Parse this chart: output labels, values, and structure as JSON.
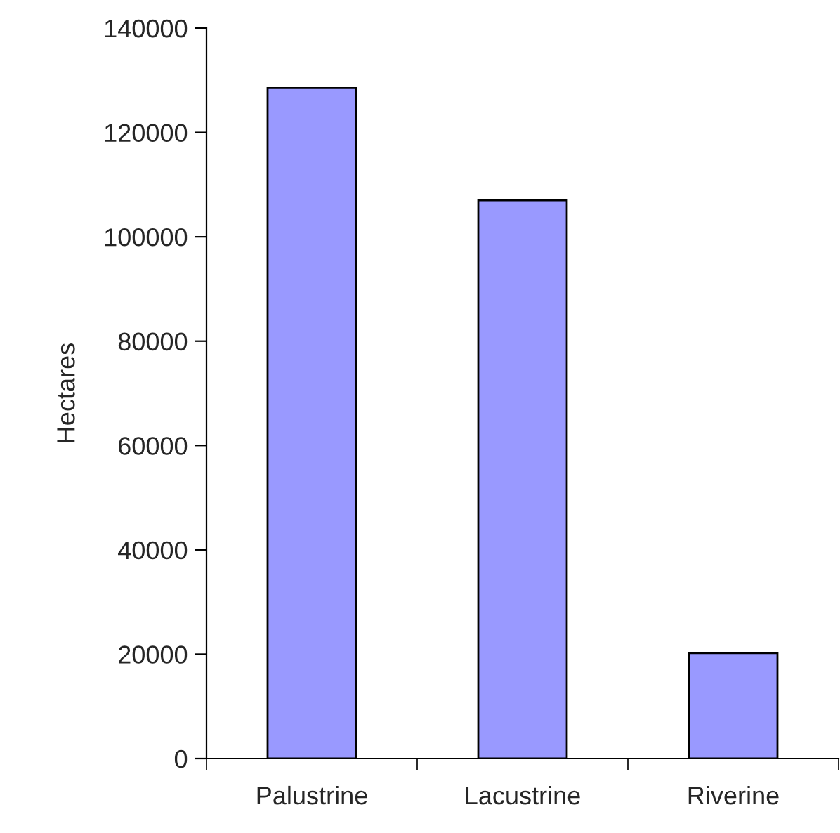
{
  "chart_data": {
    "type": "bar",
    "ylabel": "Hectares",
    "categories": [
      "Palustrine",
      "Lacustrine",
      "Riverine"
    ],
    "values": [
      128500,
      107000,
      20200
    ],
    "color": "#9999ff",
    "ylim": [
      0,
      140000
    ],
    "yticks": [
      0,
      20000,
      40000,
      60000,
      80000,
      100000,
      120000,
      140000
    ],
    "grid": false,
    "legend": false
  }
}
